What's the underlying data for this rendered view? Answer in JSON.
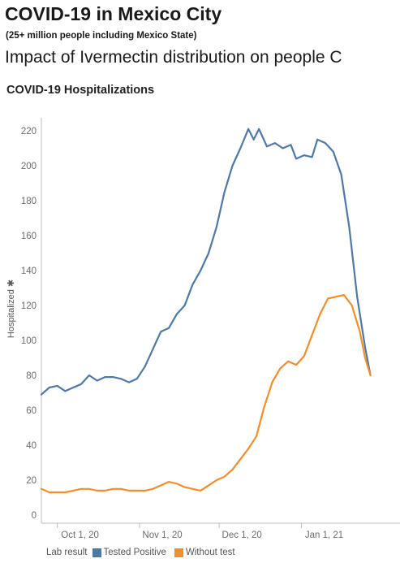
{
  "header": {
    "title": "COVID-19 in Mexico City",
    "subtitle": "(25+ million people including Mexico State)",
    "headline": "Impact of Ivermectin distribution on people C"
  },
  "colors": {
    "tested_positive": "#4e79a7",
    "without_test": "#f28e2b",
    "axis": "#bdbdbd",
    "tick_text": "#6b6b6b"
  },
  "legend": {
    "title": "Lab result",
    "items": [
      {
        "label": "Tested Positive",
        "color": "#4e79a7"
      },
      {
        "label": "Without test",
        "color": "#f28e2b"
      }
    ]
  },
  "chart_data": {
    "type": "line",
    "title": "COVID-19 Hospitalizations",
    "ylabel": "Hospitalized ✱",
    "xlabel": "",
    "ylim": [
      0,
      230
    ],
    "xlim": [
      "2020-09-25",
      "2021-02-05"
    ],
    "yticks": [
      0,
      20,
      40,
      60,
      80,
      100,
      120,
      140,
      160,
      180,
      200,
      220
    ],
    "xticks": [
      {
        "label": "Oct 1, 20",
        "date": "2020-10-01"
      },
      {
        "label": "Nov 1, 20",
        "date": "2020-11-01"
      },
      {
        "label": "Dec 1, 20",
        "date": "2020-12-01"
      },
      {
        "label": "Jan 1, 21",
        "date": "2021-01-01"
      }
    ],
    "grid": false,
    "legend_position": "bottom",
    "series": [
      {
        "name": "Tested Positive",
        "color": "#4e79a7",
        "points": [
          [
            "2020-09-25",
            69
          ],
          [
            "2020-09-28",
            73
          ],
          [
            "2020-10-01",
            74
          ],
          [
            "2020-10-04",
            71
          ],
          [
            "2020-10-07",
            73
          ],
          [
            "2020-10-10",
            75
          ],
          [
            "2020-10-13",
            80
          ],
          [
            "2020-10-16",
            77
          ],
          [
            "2020-10-19",
            79
          ],
          [
            "2020-10-22",
            79
          ],
          [
            "2020-10-25",
            78
          ],
          [
            "2020-10-28",
            76
          ],
          [
            "2020-10-31",
            78
          ],
          [
            "2020-11-03",
            85
          ],
          [
            "2020-11-06",
            95
          ],
          [
            "2020-11-09",
            105
          ],
          [
            "2020-11-12",
            107
          ],
          [
            "2020-11-15",
            115
          ],
          [
            "2020-11-18",
            120
          ],
          [
            "2020-11-21",
            132
          ],
          [
            "2020-11-24",
            140
          ],
          [
            "2020-11-27",
            150
          ],
          [
            "2020-11-30",
            165
          ],
          [
            "2020-12-03",
            185
          ],
          [
            "2020-12-06",
            200
          ],
          [
            "2020-12-09",
            210
          ],
          [
            "2020-12-12",
            221
          ],
          [
            "2020-12-14",
            215
          ],
          [
            "2020-12-16",
            221
          ],
          [
            "2020-12-19",
            211
          ],
          [
            "2020-12-22",
            213
          ],
          [
            "2020-12-25",
            210
          ],
          [
            "2020-12-28",
            212
          ],
          [
            "2020-12-30",
            204
          ],
          [
            "2021-01-02",
            206
          ],
          [
            "2021-01-05",
            205
          ],
          [
            "2021-01-07",
            215
          ],
          [
            "2021-01-10",
            213
          ],
          [
            "2021-01-13",
            208
          ],
          [
            "2021-01-16",
            195
          ],
          [
            "2021-01-19",
            165
          ],
          [
            "2021-01-22",
            125
          ],
          [
            "2021-01-25",
            96
          ],
          [
            "2021-01-27",
            80
          ]
        ]
      },
      {
        "name": "Without test",
        "color": "#f28e2b",
        "points": [
          [
            "2020-09-25",
            15
          ],
          [
            "2020-09-28",
            13
          ],
          [
            "2020-10-01",
            13
          ],
          [
            "2020-10-04",
            13
          ],
          [
            "2020-10-07",
            14
          ],
          [
            "2020-10-10",
            15
          ],
          [
            "2020-10-13",
            15
          ],
          [
            "2020-10-16",
            14
          ],
          [
            "2020-10-19",
            14
          ],
          [
            "2020-10-22",
            15
          ],
          [
            "2020-10-25",
            15
          ],
          [
            "2020-10-28",
            14
          ],
          [
            "2020-10-31",
            14
          ],
          [
            "2020-11-03",
            14
          ],
          [
            "2020-11-06",
            15
          ],
          [
            "2020-11-09",
            17
          ],
          [
            "2020-11-12",
            19
          ],
          [
            "2020-11-15",
            18
          ],
          [
            "2020-11-18",
            16
          ],
          [
            "2020-11-21",
            15
          ],
          [
            "2020-11-24",
            14
          ],
          [
            "2020-11-27",
            17
          ],
          [
            "2020-11-30",
            20
          ],
          [
            "2020-12-03",
            22
          ],
          [
            "2020-12-06",
            26
          ],
          [
            "2020-12-09",
            32
          ],
          [
            "2020-12-12",
            38
          ],
          [
            "2020-12-15",
            45
          ],
          [
            "2020-12-18",
            62
          ],
          [
            "2020-12-21",
            76
          ],
          [
            "2020-12-24",
            84
          ],
          [
            "2020-12-27",
            88
          ],
          [
            "2020-12-30",
            86
          ],
          [
            "2021-01-02",
            91
          ],
          [
            "2021-01-05",
            103
          ],
          [
            "2021-01-08",
            115
          ],
          [
            "2021-01-11",
            124
          ],
          [
            "2021-01-14",
            125
          ],
          [
            "2021-01-17",
            126
          ],
          [
            "2021-01-20",
            120
          ],
          [
            "2021-01-23",
            105
          ],
          [
            "2021-01-25",
            90
          ],
          [
            "2021-01-27",
            80
          ]
        ]
      }
    ]
  }
}
